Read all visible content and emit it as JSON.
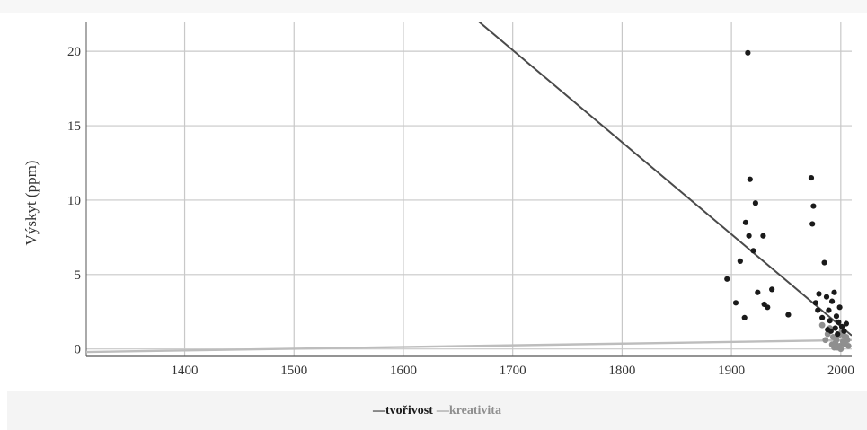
{
  "chart_data": {
    "type": "scatter",
    "title": "",
    "xlabel": "",
    "ylabel": "Výskyt (ppm)",
    "xlim": [
      1310,
      2010
    ],
    "ylim": [
      -0.5,
      22
    ],
    "xticks": [
      1400,
      1500,
      1600,
      1700,
      1800,
      1900,
      2000
    ],
    "yticks": [
      0,
      5,
      10,
      15,
      20
    ],
    "grid": true,
    "legend_position": "bottom-center",
    "series": [
      {
        "name": "tvořivost",
        "color": "#1a1a1a",
        "line_color": "#4a4a4a",
        "points": [
          [
            1896,
            4.7
          ],
          [
            1904,
            3.1
          ],
          [
            1908,
            5.9
          ],
          [
            1912,
            2.1
          ],
          [
            1913,
            8.5
          ],
          [
            1915,
            19.9
          ],
          [
            1916,
            7.6
          ],
          [
            1917,
            11.4
          ],
          [
            1920,
            6.6
          ],
          [
            1922,
            9.8
          ],
          [
            1924,
            3.8
          ],
          [
            1929,
            7.6
          ],
          [
            1930,
            3.0
          ],
          [
            1933,
            2.8
          ],
          [
            1937,
            4.0
          ],
          [
            1952,
            2.3
          ],
          [
            1973,
            11.5
          ],
          [
            1974,
            8.4
          ],
          [
            1975,
            9.6
          ],
          [
            1977,
            3.1
          ],
          [
            1979,
            2.6
          ],
          [
            1980,
            3.7
          ],
          [
            1983,
            2.1
          ],
          [
            1985,
            5.8
          ],
          [
            1987,
            3.5
          ],
          [
            1988,
            1.3
          ],
          [
            1989,
            2.6
          ],
          [
            1990,
            1.9
          ],
          [
            1991,
            1.2
          ],
          [
            1992,
            3.2
          ],
          [
            1994,
            3.8
          ],
          [
            1995,
            1.4
          ],
          [
            1996,
            2.2
          ],
          [
            1997,
            1.0
          ],
          [
            1998,
            1.8
          ],
          [
            1999,
            2.8
          ],
          [
            2001,
            1.5
          ],
          [
            2003,
            1.2
          ],
          [
            2005,
            1.7
          ]
        ],
        "trend": {
          "x0": 1310,
          "y0": 44.2,
          "x1": 2010,
          "y1": 0.9
        }
      },
      {
        "name": "kreativita",
        "color": "#8f8f8f",
        "line_color": "#bdbdbd",
        "points": [
          [
            1983,
            1.6
          ],
          [
            1986,
            0.6
          ],
          [
            1988,
            1.0
          ],
          [
            1990,
            1.4
          ],
          [
            1992,
            0.3
          ],
          [
            1993,
            0.8
          ],
          [
            1994,
            0.1
          ],
          [
            1995,
            0.4
          ],
          [
            1996,
            0.6
          ],
          [
            1997,
            0.1
          ],
          [
            1998,
            0.9
          ],
          [
            1999,
            0.2
          ],
          [
            2000,
            0.0
          ],
          [
            2001,
            1.2
          ],
          [
            2002,
            0.5
          ],
          [
            2003,
            0.9
          ],
          [
            2004,
            0.3
          ],
          [
            2005,
            0.8
          ],
          [
            2006,
            0.6
          ],
          [
            2007,
            0.2
          ]
        ],
        "trend": {
          "x0": 1310,
          "y0": -0.2,
          "x1": 2010,
          "y1": 0.6
        }
      }
    ]
  }
}
